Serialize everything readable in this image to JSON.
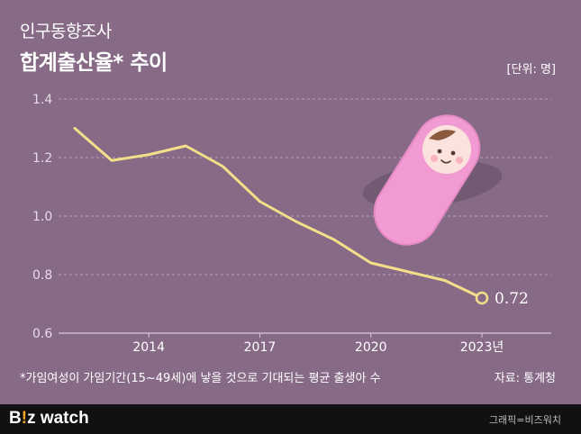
{
  "header": {
    "title_line1": "인구동향조사",
    "title_line2": "합계출산율* 추이",
    "unit": "[단위: 명]"
  },
  "footer": {
    "footnote": "*가임여성이 가임기간(15~49세)에 낳을 것으로 기대되는 평균 출생아 수",
    "source": "자료: 통계청",
    "logo_part1": "B",
    "logo_accent": "!",
    "logo_part2": "z watch",
    "credit": "그래픽=비즈워치"
  },
  "colors": {
    "background": "#866a86",
    "line": "#f3df8a",
    "grid": "#b7a2b7",
    "text": "#ffffff"
  },
  "chart_data": {
    "type": "line",
    "title": "합계출산율* 추이",
    "x": [
      2012,
      2013,
      2014,
      2015,
      2016,
      2017,
      2018,
      2019,
      2020,
      2021,
      2022,
      2023
    ],
    "series": [
      {
        "values": [
          1.3,
          1.19,
          1.21,
          1.24,
          1.17,
          1.05,
          0.98,
          0.92,
          0.84,
          0.81,
          0.78,
          0.72
        ]
      }
    ],
    "xticks": [
      "2014",
      "2017",
      "2020",
      "2023년"
    ],
    "xtick_values": [
      2014,
      2017,
      2020,
      2023
    ],
    "yticks": [
      "1.4",
      "1.2",
      "1.0",
      "0.8",
      "0.6"
    ],
    "ytick_values": [
      1.4,
      1.2,
      1.0,
      0.8,
      0.6
    ],
    "ylim": [
      0.6,
      1.4
    ],
    "xlim": [
      2012,
      2023
    ],
    "end_label": "0.72",
    "grid": true,
    "illustration": "swaddled-baby-icon"
  }
}
